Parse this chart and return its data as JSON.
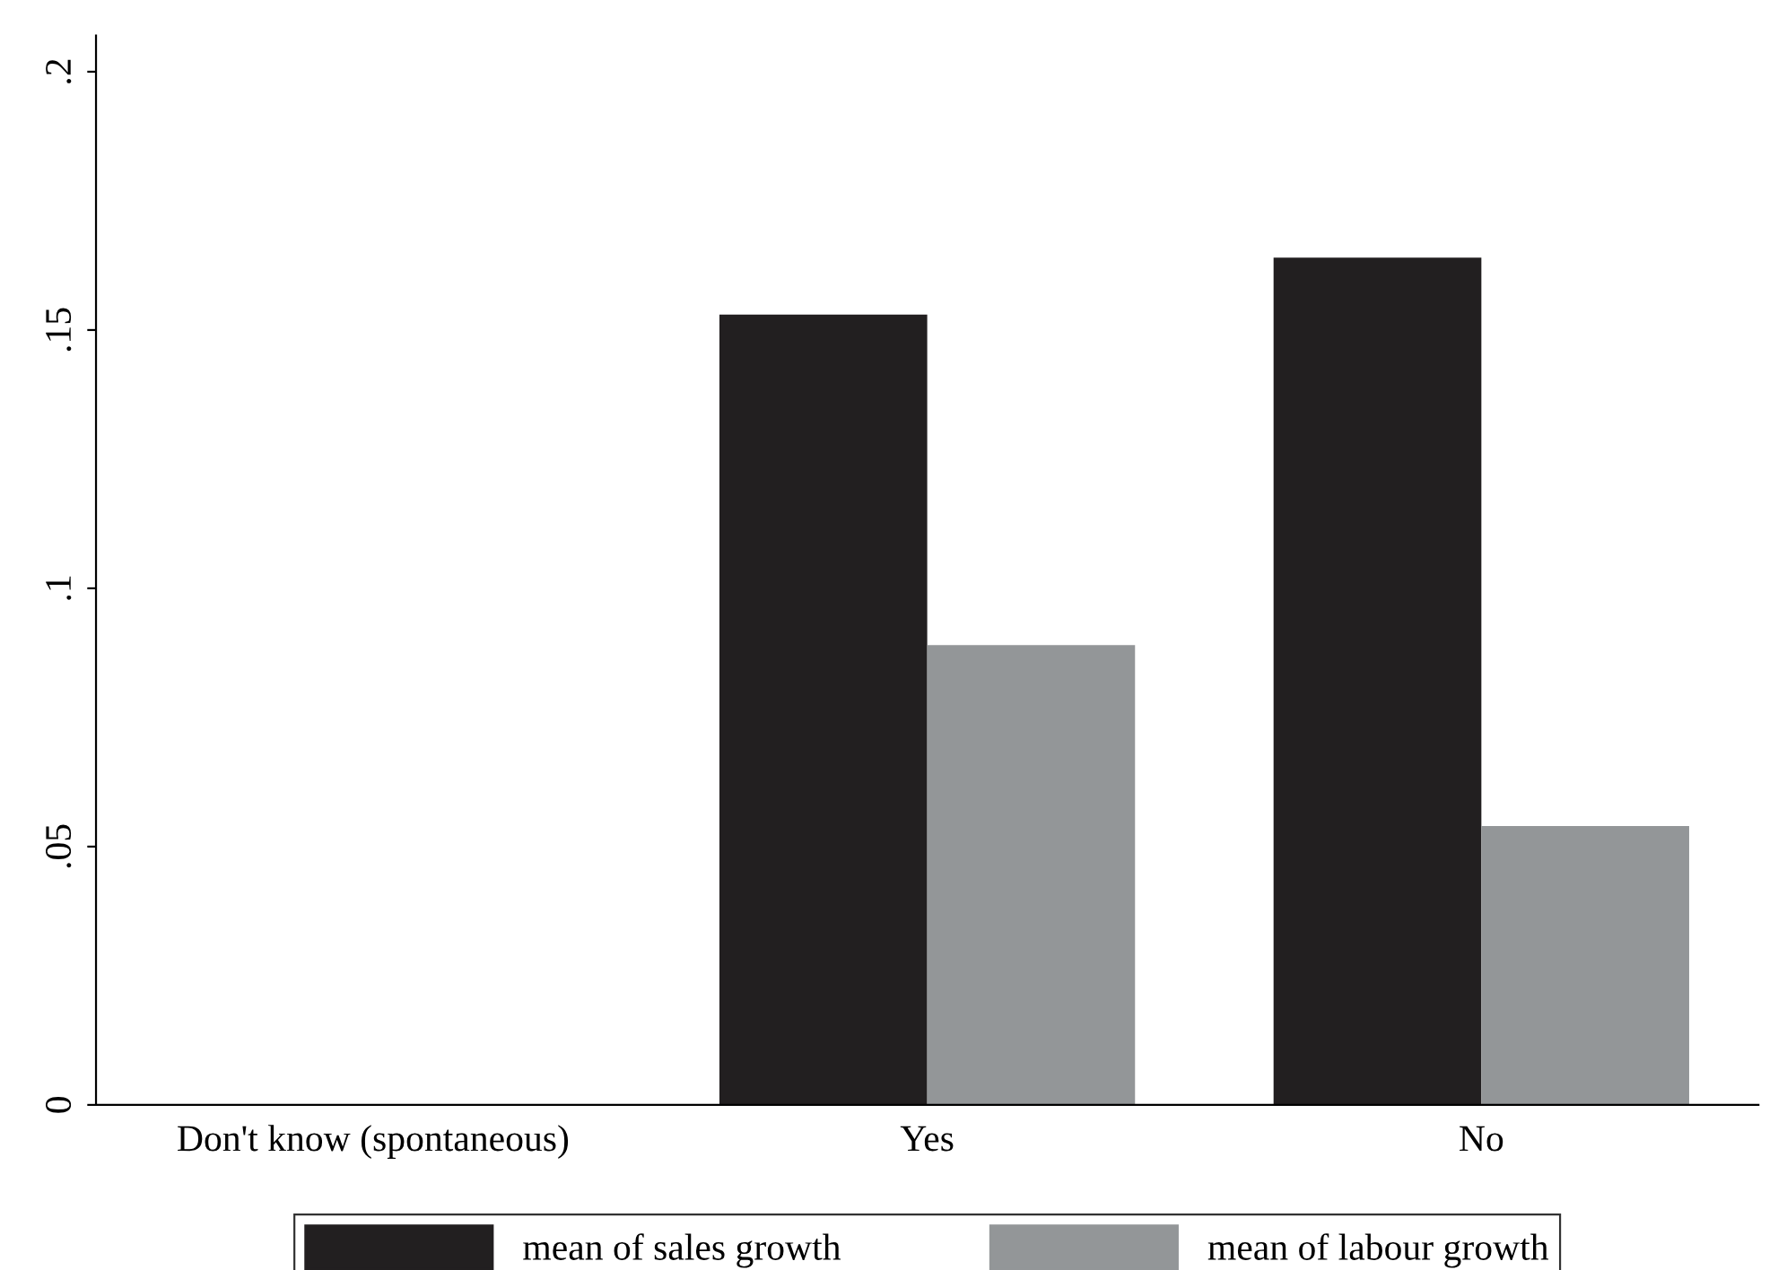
{
  "chart_data": {
    "type": "bar",
    "categories": [
      "Don't know (spontaneous)",
      "Yes",
      "No"
    ],
    "series": [
      {
        "name": "mean of sales growth",
        "color": "#221f20",
        "values": [
          0,
          0.153,
          0.164
        ]
      },
      {
        "name": "mean of labour growth",
        "color": "#939698",
        "values": [
          0,
          0.089,
          0.054
        ]
      }
    ],
    "ylim": [
      0,
      0.207
    ],
    "yticks": [
      {
        "value": 0,
        "label": "0"
      },
      {
        "value": 0.05,
        "label": ".05"
      },
      {
        "value": 0.1,
        "label": ".1"
      },
      {
        "value": 0.15,
        "label": ".15"
      },
      {
        "value": 0.2,
        "label": ".2"
      }
    ],
    "grid": false,
    "legend": "bottom"
  }
}
